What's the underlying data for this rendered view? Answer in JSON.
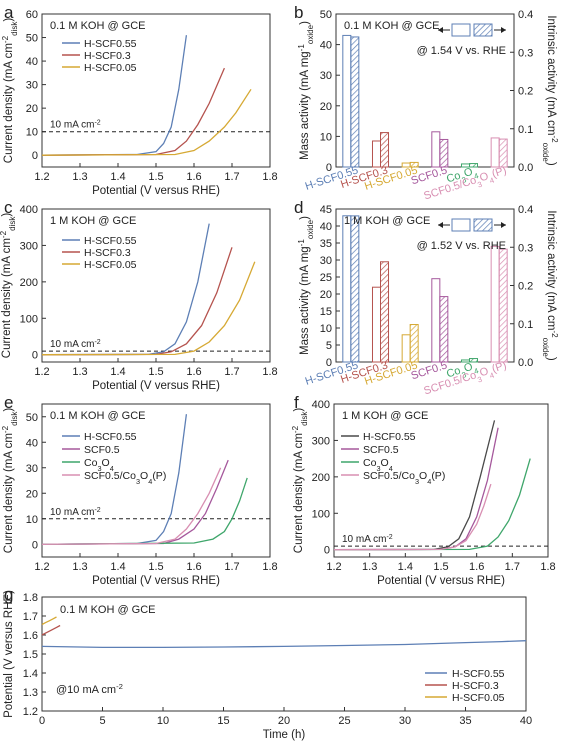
{
  "figure": {
    "panels": [
      "a",
      "b",
      "c",
      "d",
      "e",
      "f",
      "g"
    ]
  },
  "colors": {
    "H-SCF0.55": "#5d7fb5",
    "H-SCF0.3": "#b5534e",
    "H-SCF0.05": "#d6a934",
    "SCF0.5": "#a5589c",
    "Co3O4": "#3fa66b",
    "SCF0.5/Co3O4(P)": "#d88fb2",
    "SCF0.55_e": "#4a4a4a"
  },
  "chart_data": [
    {
      "panel": "a",
      "type": "line",
      "condition": "0.1 M KOH @ GCE",
      "xlabel": "Potential (V versus RHE)",
      "ylabel": "Current density (mA cm⁻²disk)",
      "xlim": [
        1.2,
        1.8
      ],
      "ylim": [
        -5,
        60
      ],
      "xticks": [
        "1.2",
        "1.3",
        "1.4",
        "1.5",
        "1.6",
        "1.7",
        "1.8"
      ],
      "yticks": [
        "0",
        "10",
        "20",
        "30",
        "40",
        "50",
        "60"
      ],
      "reference": {
        "y": 10,
        "label": "10 mA cm⁻²"
      },
      "legend": "top-left",
      "series": [
        {
          "name": "H-SCF0.55",
          "x": [
            1.2,
            1.45,
            1.5,
            1.52,
            1.54,
            1.56,
            1.58
          ],
          "y": [
            0,
            0.3,
            1.5,
            5,
            12,
            28,
            51
          ]
        },
        {
          "name": "H-SCF0.3",
          "x": [
            1.2,
            1.5,
            1.55,
            1.58,
            1.61,
            1.64,
            1.68
          ],
          "y": [
            0,
            0.3,
            2,
            6,
            13,
            22,
            37
          ]
        },
        {
          "name": "H-SCF0.05",
          "x": [
            1.2,
            1.55,
            1.6,
            1.64,
            1.68,
            1.71,
            1.75
          ],
          "y": [
            0,
            0.3,
            2,
            6,
            12,
            18,
            28
          ]
        }
      ]
    },
    {
      "panel": "b",
      "type": "bar",
      "condition": "0.1 M KOH @ GCE",
      "potential": "@ 1.54 V vs. RHE",
      "ylabel_left": "Mass activity (mA mg⁻¹oxide)",
      "ylabel_right": "Intrinsic activity (mA cm⁻²oxide)",
      "ylim_left": [
        0,
        50
      ],
      "ylim_right": [
        0,
        0.4
      ],
      "yticks_left": [
        "0",
        "10",
        "20",
        "30",
        "40",
        "50"
      ],
      "yticks_right": [
        "0.0",
        "0.1",
        "0.2",
        "0.3",
        "0.4"
      ],
      "categories": [
        "H-SCF0.55",
        "H-SCF0.3",
        "H-SCF0.05",
        "SCF0.5",
        "Co3O4",
        "SCF0.5/Co3O4(P)"
      ],
      "mass_activity": [
        43,
        8.5,
        1.3,
        11.5,
        1,
        9.5
      ],
      "intrinsic_activity": [
        0.34,
        0.09,
        0.012,
        0.072,
        0.009,
        0.073
      ]
    },
    {
      "panel": "c",
      "type": "line",
      "condition": "1 M KOH @ GCE",
      "xlabel": "Potential (V versus RHE)",
      "ylabel": "Current density (mA cm⁻²disk)",
      "xlim": [
        1.2,
        1.8
      ],
      "ylim": [
        -20,
        400
      ],
      "xticks": [
        "1.2",
        "1.3",
        "1.4",
        "1.5",
        "1.6",
        "1.7",
        "1.8"
      ],
      "yticks": [
        "0",
        "100",
        "200",
        "300",
        "400"
      ],
      "reference": {
        "y": 10,
        "label": "10 mA cm⁻²"
      },
      "legend": "top-left",
      "series": [
        {
          "name": "H-SCF0.55",
          "x": [
            1.2,
            1.48,
            1.52,
            1.55,
            1.58,
            1.61,
            1.64
          ],
          "y": [
            0,
            1,
            8,
            30,
            90,
            200,
            360
          ]
        },
        {
          "name": "H-SCF0.3",
          "x": [
            1.2,
            1.5,
            1.54,
            1.58,
            1.62,
            1.66,
            1.7
          ],
          "y": [
            0,
            1,
            8,
            30,
            80,
            170,
            295
          ]
        },
        {
          "name": "H-SCF0.05",
          "x": [
            1.2,
            1.55,
            1.6,
            1.64,
            1.68,
            1.72,
            1.76
          ],
          "y": [
            0,
            1,
            10,
            35,
            80,
            150,
            255
          ]
        }
      ]
    },
    {
      "panel": "d",
      "type": "bar",
      "condition": "1 M KOH @ GCE",
      "potential": "@ 1.52 V vs. RHE",
      "ylabel_left": "Mass activity (mA mg⁻¹oxide)",
      "ylabel_right": "Intrinsic activity (mA cm⁻²oxide)",
      "ylim_left": [
        0,
        45
      ],
      "ylim_right": [
        0,
        0.4
      ],
      "yticks_left": [
        "0",
        "5",
        "10",
        "15",
        "20",
        "25",
        "30",
        "35",
        "40",
        "45"
      ],
      "yticks_right": [
        "0.0",
        "0.1",
        "0.2",
        "0.3",
        "0.4"
      ],
      "categories": [
        "H-SCF0.55",
        "H-SCF0.3",
        "H-SCF0.05",
        "SCF0.5",
        "Co3O4",
        "SCF0.5/Co3O4(P)"
      ],
      "mass_activity": [
        43,
        22,
        8,
        24.5,
        0.6,
        34
      ],
      "intrinsic_activity": [
        0.382,
        0.262,
        0.098,
        0.171,
        0.009,
        0.295
      ]
    },
    {
      "panel": "e",
      "type": "line",
      "condition": "0.1 M KOH @ GCE",
      "xlabel": "Potential (V versus RHE)",
      "ylabel": "Current density (mA cm⁻²disk)",
      "xlim": [
        1.2,
        1.8
      ],
      "ylim": [
        -5,
        55
      ],
      "xticks": [
        "1.2",
        "1.3",
        "1.4",
        "1.5",
        "1.6",
        "1.7",
        "1.8"
      ],
      "yticks": [
        "0",
        "10",
        "20",
        "30",
        "40",
        "50"
      ],
      "reference": {
        "y": 10,
        "label": "10 mA cm⁻²"
      },
      "legend": "top-left",
      "series": [
        {
          "name": "H-SCF0.55",
          "x": [
            1.2,
            1.45,
            1.5,
            1.52,
            1.54,
            1.56,
            1.58
          ],
          "y": [
            0,
            0.3,
            1.5,
            5,
            12,
            28,
            51
          ]
        },
        {
          "name": "SCF0.5",
          "x": [
            1.2,
            1.52,
            1.56,
            1.6,
            1.63,
            1.66,
            1.69
          ],
          "y": [
            0,
            0.3,
            2,
            6,
            12,
            22,
            33
          ]
        },
        {
          "name": "Co3O4",
          "x": [
            1.2,
            1.6,
            1.65,
            1.68,
            1.7,
            1.72,
            1.74
          ],
          "y": [
            0,
            0.5,
            2,
            5,
            10,
            17,
            26
          ]
        },
        {
          "name": "SCF0.5/Co3O4(P)",
          "x": [
            1.2,
            1.5,
            1.55,
            1.58,
            1.61,
            1.64,
            1.67
          ],
          "y": [
            0,
            0.3,
            2,
            6,
            12,
            20,
            30
          ]
        }
      ]
    },
    {
      "panel": "f",
      "type": "line",
      "condition": "1 M KOH @ GCE",
      "xlabel": "Potential (V versus RHE)",
      "ylabel": "Current density (mA cm⁻²disk)",
      "xlim": [
        1.2,
        1.8
      ],
      "ylim": [
        -20,
        400
      ],
      "xticks": [
        "1.2",
        "1.3",
        "1.4",
        "1.5",
        "1.6",
        "1.7",
        "1.8"
      ],
      "yticks": [
        "0",
        "100",
        "200",
        "300",
        "400"
      ],
      "reference": {
        "y": 10,
        "label": "10 mA cm⁻²"
      },
      "legend": "top-left",
      "series": [
        {
          "name": "H-SCF0.55",
          "x": [
            1.2,
            1.48,
            1.52,
            1.55,
            1.58,
            1.61,
            1.65
          ],
          "y": [
            0,
            1,
            8,
            30,
            90,
            200,
            355
          ]
        },
        {
          "name": "SCF0.5",
          "x": [
            1.2,
            1.5,
            1.54,
            1.57,
            1.6,
            1.63,
            1.66
          ],
          "y": [
            0,
            1,
            8,
            30,
            90,
            190,
            335
          ]
        },
        {
          "name": "Co3O4",
          "x": [
            1.2,
            1.58,
            1.63,
            1.66,
            1.69,
            1.72,
            1.75
          ],
          "y": [
            0,
            1,
            10,
            35,
            80,
            150,
            250
          ]
        },
        {
          "name": "SCF0.5/Co3O4(P)",
          "x": [
            1.2,
            1.5,
            1.54,
            1.57,
            1.6,
            1.62,
            1.64
          ],
          "y": [
            0,
            1,
            8,
            25,
            70,
            120,
            180
          ]
        }
      ]
    },
    {
      "panel": "g",
      "type": "line",
      "condition": "0.1 M KOH @ GCE",
      "note": "@10 mA cm⁻²",
      "xlabel": "Time (h)",
      "ylabel": "Potential (V versus RHE)",
      "xlim": [
        0,
        40
      ],
      "ylim": [
        1.2,
        1.8
      ],
      "xticks": [
        "0",
        "5",
        "10",
        "15",
        "20",
        "25",
        "30",
        "35",
        "40"
      ],
      "yticks": [
        "1.2",
        "1.3",
        "1.4",
        "1.5",
        "1.6",
        "1.7",
        "1.8"
      ],
      "legend": "bottom-right",
      "series": [
        {
          "name": "H-SCF0.55",
          "x": [
            0,
            5,
            10,
            15,
            20,
            25,
            30,
            35,
            38,
            40
          ],
          "y": [
            1.54,
            1.535,
            1.535,
            1.537,
            1.54,
            1.545,
            1.55,
            1.56,
            1.565,
            1.57
          ]
        },
        {
          "name": "H-SCF0.3",
          "x": [
            0,
            0.3,
            0.6,
            0.9,
            1.2,
            1.5
          ],
          "y": [
            1.6,
            1.61,
            1.62,
            1.63,
            1.64,
            1.65
          ]
        },
        {
          "name": "H-SCF0.05",
          "x": [
            0,
            0.3,
            0.6,
            0.9,
            1.2
          ],
          "y": [
            1.655,
            1.665,
            1.675,
            1.685,
            1.695
          ]
        }
      ]
    }
  ]
}
